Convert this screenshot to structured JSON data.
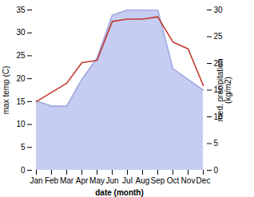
{
  "chart_data": {
    "type": "line",
    "categories": [
      "Jan",
      "Feb",
      "Mar",
      "Apr",
      "May",
      "Jun",
      "Jul",
      "Aug",
      "Sep",
      "Oct",
      "Nov",
      "Dec"
    ],
    "series": [
      {
        "type": "area",
        "axis": "y2",
        "color": "#c5cdf2",
        "values": [
          13,
          12,
          12,
          17,
          21,
          29,
          30,
          30,
          30,
          19,
          17,
          15
        ]
      },
      {
        "type": "line",
        "axis": "y2",
        "color": "#a0a8e0",
        "values": [
          13,
          12,
          12,
          17,
          21,
          29,
          30,
          30,
          30,
          19,
          17,
          15
        ]
      },
      {
        "type": "line",
        "color": "#c0392b",
        "values": [
          15,
          17,
          19,
          23.5,
          24,
          32.5,
          33,
          33,
          33.5,
          28,
          26.5,
          18.5
        ]
      }
    ],
    "xlabel": "date (month)",
    "ylabel": "max temp (C)",
    "y2label": "med. precipitation\n(kg/m2)",
    "ylim": [
      0,
      35
    ],
    "yticks": [
      0,
      5,
      10,
      15,
      20,
      25,
      30,
      35
    ],
    "y2lim": [
      0,
      30
    ],
    "y2ticks": [
      0,
      5,
      10,
      15,
      20,
      25,
      30
    ],
    "grid": false
  }
}
